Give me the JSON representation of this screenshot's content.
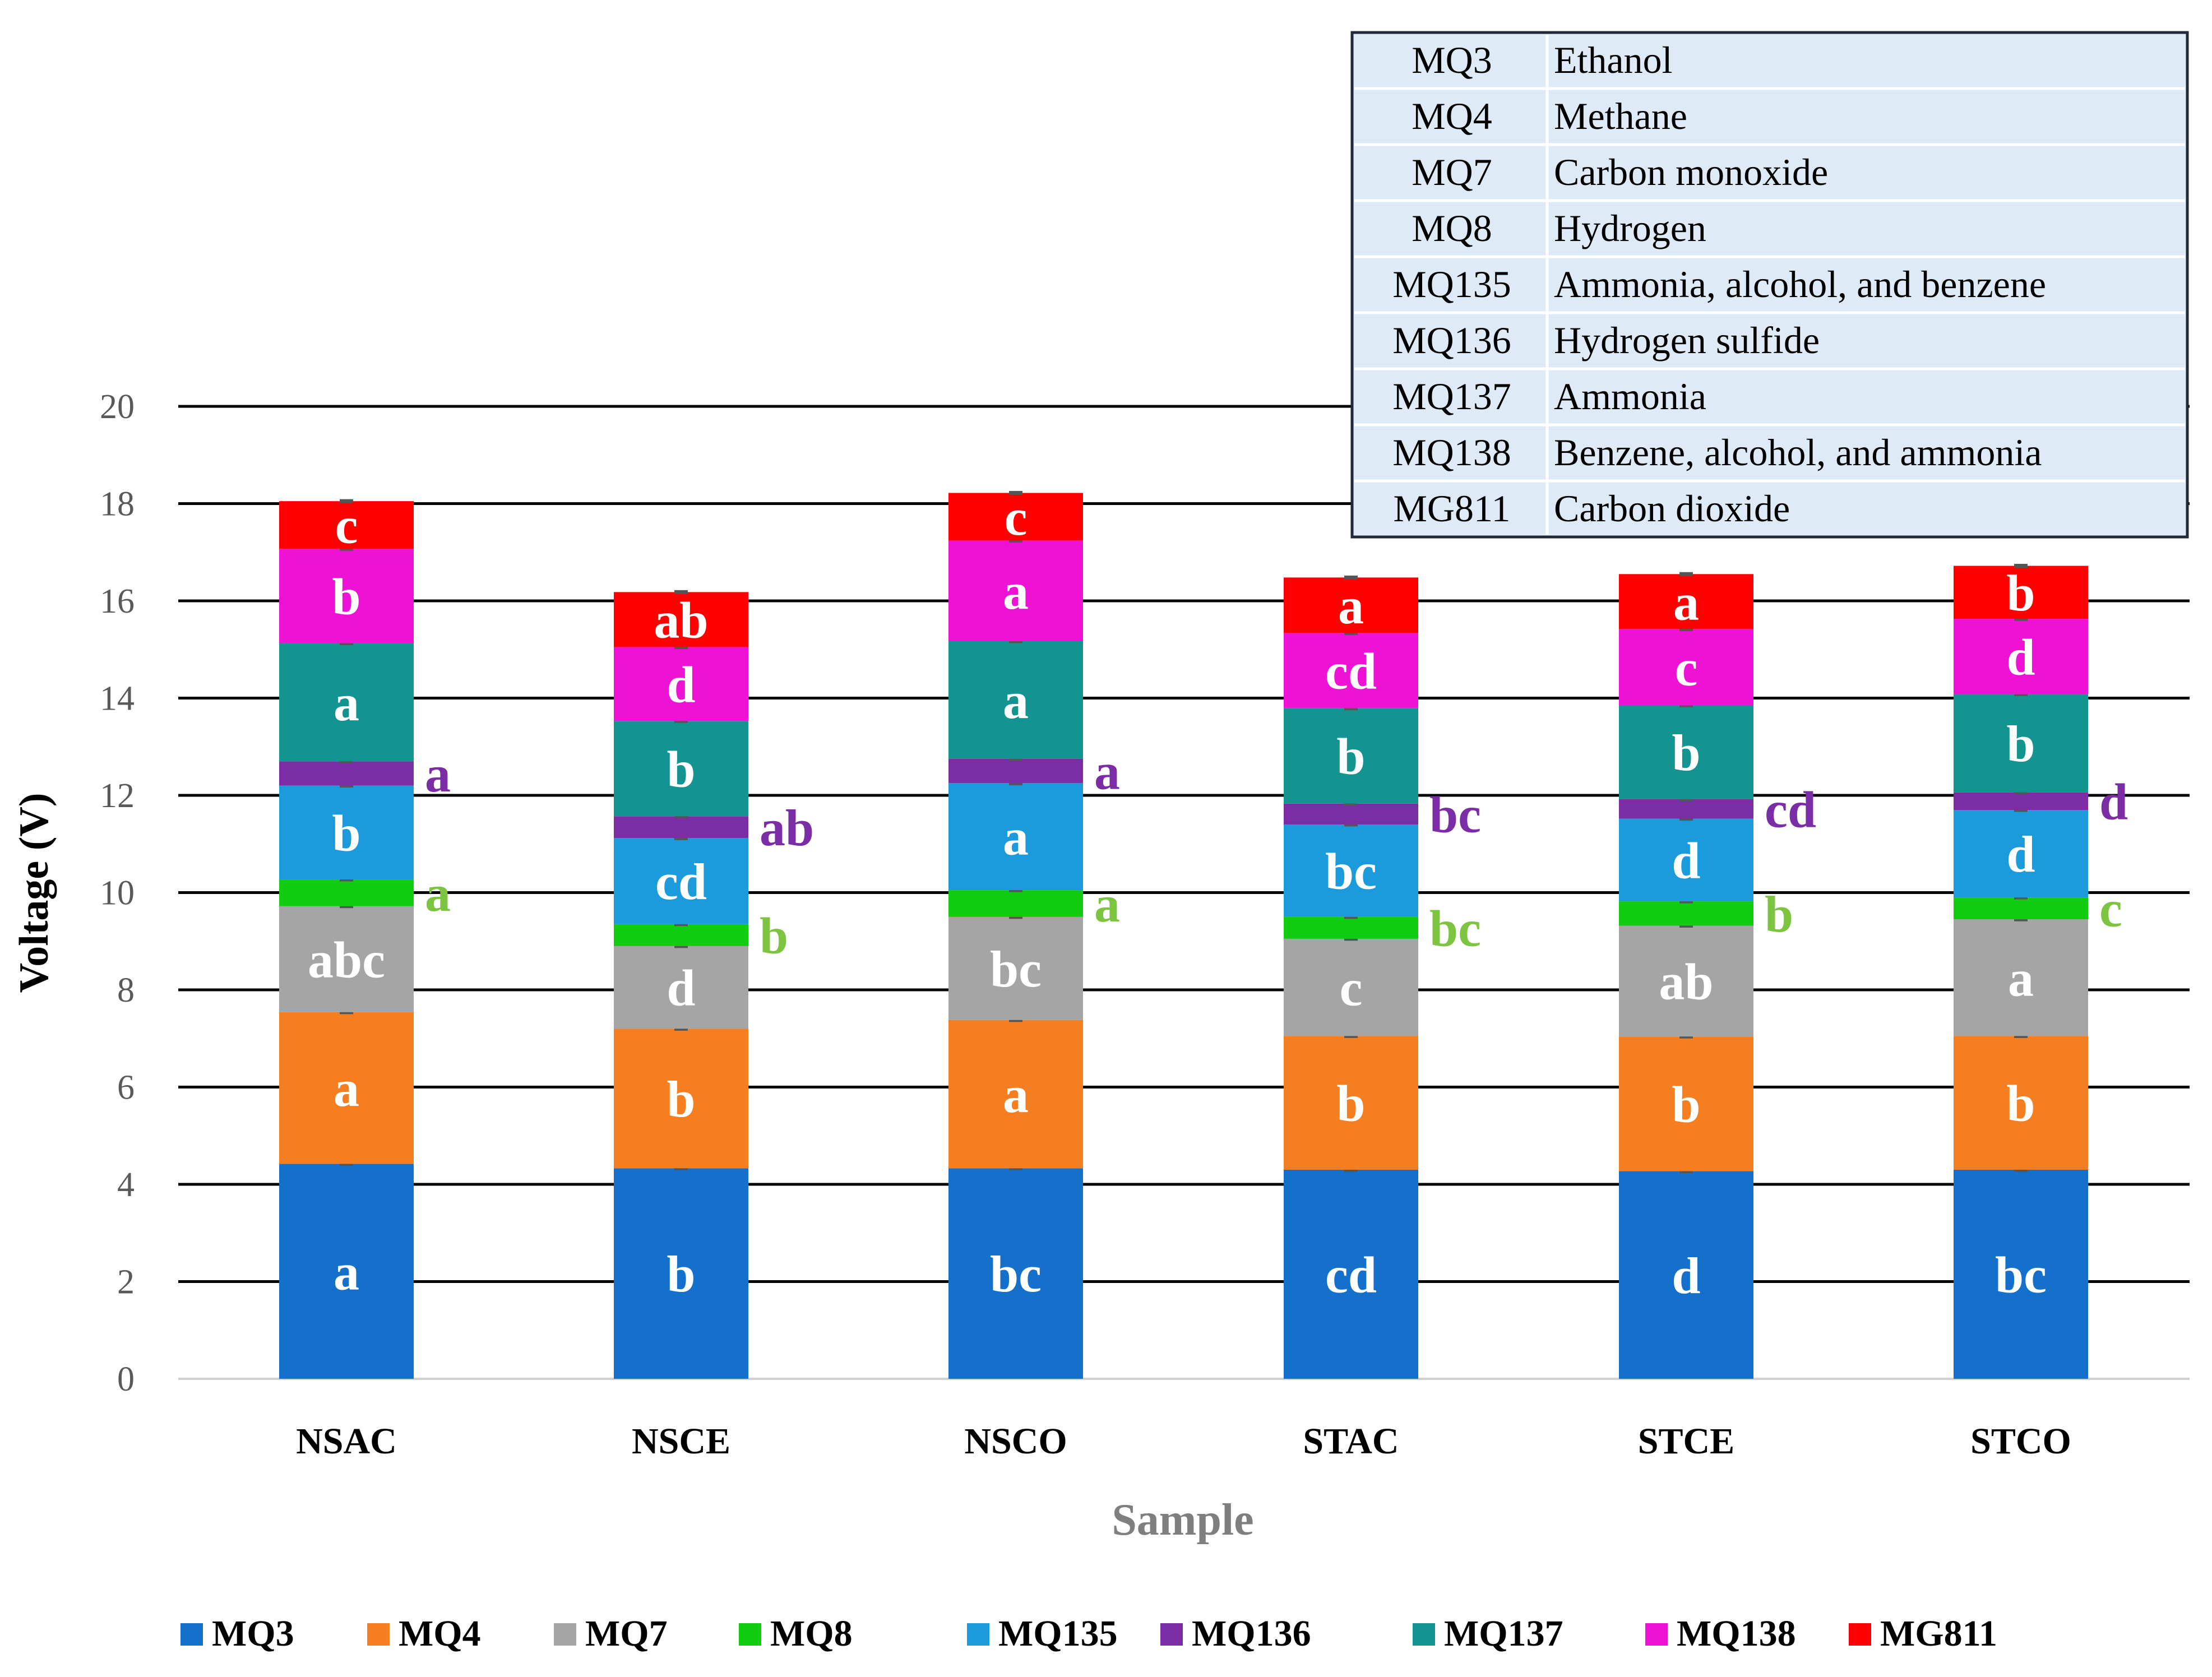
{
  "chart_data": {
    "type": "stacked-bar",
    "title": "",
    "xlabel": "Sample",
    "ylabel": "Voltage (V)",
    "ylim": [
      0,
      20
    ],
    "yticks": [
      0,
      2,
      4,
      6,
      8,
      10,
      12,
      14,
      16,
      18,
      20
    ],
    "categories": [
      "NSAC",
      "NSCE",
      "NSCO",
      "STAC",
      "STCE",
      "STCO"
    ],
    "series": [
      {
        "name": "MQ3",
        "color": "#1570CC",
        "values": [
          4.42,
          4.33,
          4.33,
          4.3,
          4.27,
          4.3
        ],
        "letters": [
          "a",
          "b",
          "bc",
          "cd",
          "d",
          "bc"
        ],
        "label_position": "inside"
      },
      {
        "name": "MQ4",
        "color": "#F57F20",
        "values": [
          3.12,
          2.87,
          3.05,
          2.75,
          2.77,
          2.75
        ],
        "letters": [
          "a",
          "b",
          "a",
          "b",
          "b",
          "b"
        ],
        "label_position": "inside"
      },
      {
        "name": "MQ7",
        "color": "#A5A5A5",
        "values": [
          2.18,
          1.7,
          2.12,
          2.0,
          2.28,
          2.4
        ],
        "letters": [
          "abc",
          "d",
          "bc",
          "c",
          "ab",
          "a"
        ],
        "label_position": "inside"
      },
      {
        "name": "MQ8",
        "color": "#11CC11",
        "values": [
          0.55,
          0.45,
          0.55,
          0.45,
          0.5,
          0.45
        ],
        "letters": [
          "a",
          "b",
          "a",
          "bc",
          "b",
          "c"
        ],
        "label_position": "outside",
        "label_color": "#7DC540"
      },
      {
        "name": "MQ135",
        "color": "#1B9BDB",
        "values": [
          1.93,
          1.77,
          2.2,
          1.9,
          1.7,
          1.8
        ],
        "letters": [
          "b",
          "cd",
          "a",
          "bc",
          "d",
          "d"
        ],
        "label_position": "inside"
      },
      {
        "name": "MQ136",
        "color": "#7A2DA5",
        "values": [
          0.5,
          0.45,
          0.5,
          0.43,
          0.4,
          0.36
        ],
        "letters": [
          "a",
          "ab",
          "a",
          "bc",
          "cd",
          "d"
        ],
        "label_position": "outside",
        "label_color": "#7A2DA5"
      },
      {
        "name": "MQ137",
        "color": "#149490",
        "values": [
          2.43,
          1.96,
          2.42,
          1.96,
          1.93,
          2.02
        ],
        "letters": [
          "a",
          "b",
          "a",
          "b",
          "b",
          "b"
        ],
        "label_position": "inside"
      },
      {
        "name": "MQ138",
        "color": "#EE12D4",
        "values": [
          1.94,
          1.52,
          2.07,
          1.55,
          1.57,
          1.55
        ],
        "letters": [
          "b",
          "d",
          "a",
          "cd",
          "c",
          "d"
        ],
        "label_position": "inside"
      },
      {
        "name": "MG811",
        "color": "#FF0000",
        "values": [
          0.98,
          1.13,
          0.98,
          1.14,
          1.13,
          1.09
        ],
        "letters": [
          "c",
          "ab",
          "c",
          "a",
          "a",
          "b"
        ],
        "label_position": "inside"
      }
    ],
    "sensor_table": [
      {
        "sensor": "MQ3",
        "gas": "Ethanol"
      },
      {
        "sensor": "MQ4",
        "gas": "Methane"
      },
      {
        "sensor": "MQ7",
        "gas": "Carbon monoxide"
      },
      {
        "sensor": "MQ8",
        "gas": "Hydrogen"
      },
      {
        "sensor": "MQ135",
        "gas": "Ammonia, alcohol, and benzene"
      },
      {
        "sensor": "MQ136",
        "gas": "Hydrogen sulfide"
      },
      {
        "sensor": "MQ137",
        "gas": "Ammonia"
      },
      {
        "sensor": "MQ138",
        "gas": "Benzene, alcohol, and ammonia"
      },
      {
        "sensor": "MG811",
        "gas": "Carbon dioxide"
      }
    ],
    "legend_position": "bottom",
    "grid": true
  }
}
